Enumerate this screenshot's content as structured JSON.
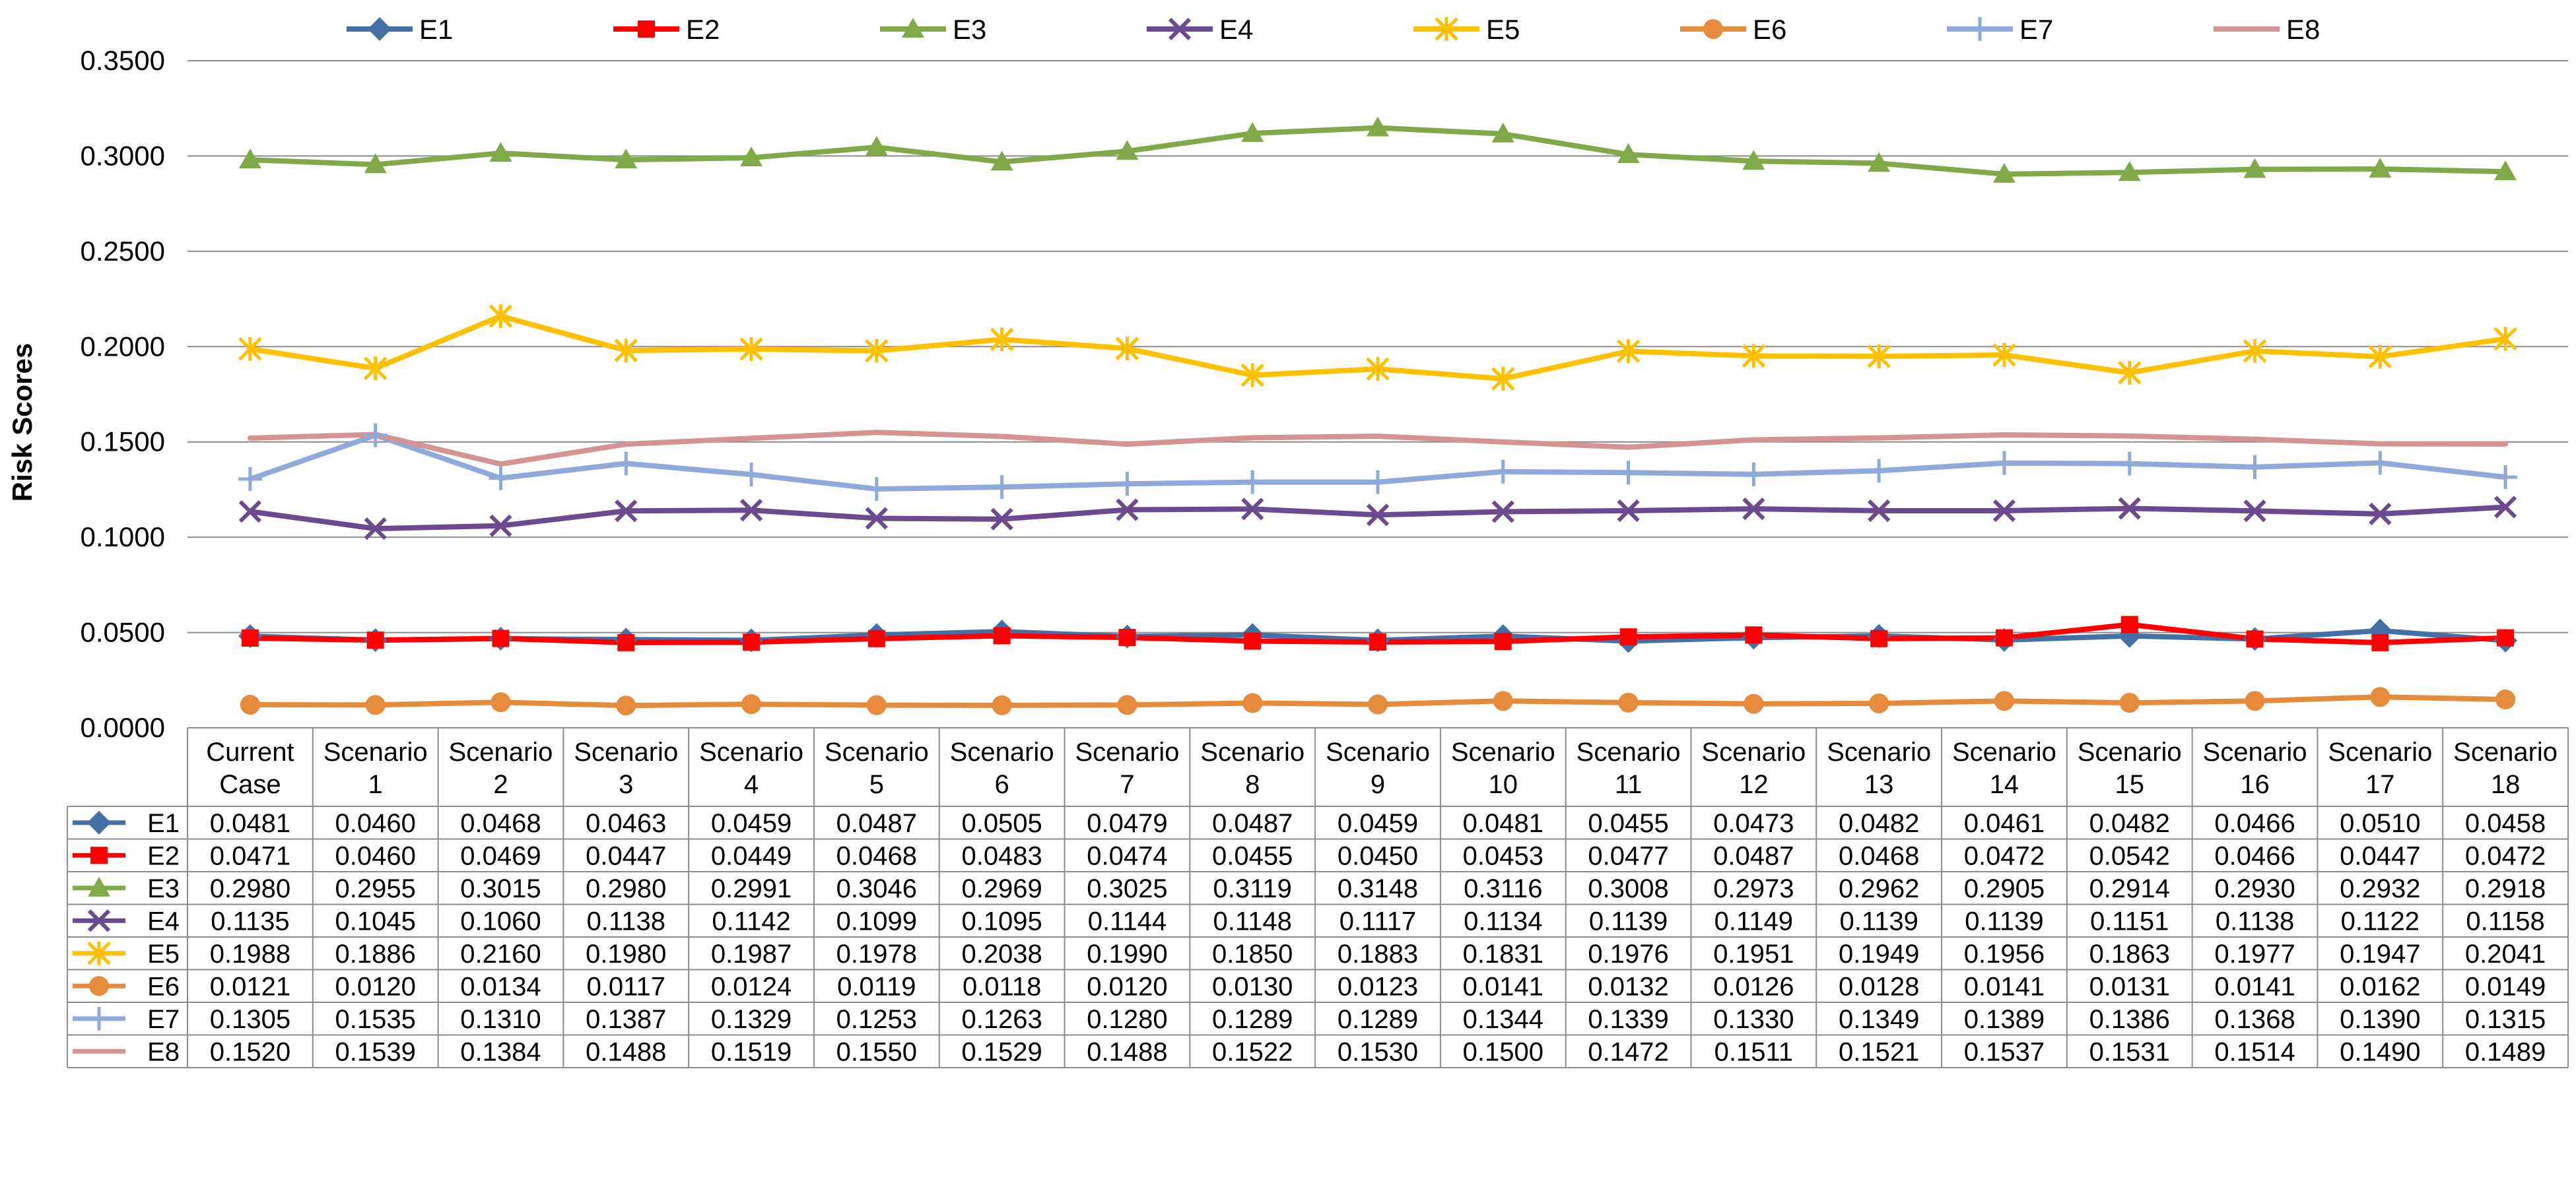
{
  "chart_data": {
    "type": "line",
    "title": "",
    "xlabel": "",
    "ylabel": "Risk Scores",
    "ylim": [
      0,
      0.35
    ],
    "ytick_step": 0.05,
    "ytick_labels": [
      "0.0000",
      "0.0500",
      "0.1000",
      "0.1500",
      "0.2000",
      "0.2500",
      "0.3000",
      "0.3500"
    ],
    "grid": true,
    "legend_position": "top",
    "categories": [
      {
        "line1": "Current",
        "line2": "Case"
      },
      {
        "line1": "Scenario",
        "line2": "1"
      },
      {
        "line1": "Scenario",
        "line2": "2"
      },
      {
        "line1": "Scenario",
        "line2": "3"
      },
      {
        "line1": "Scenario",
        "line2": "4"
      },
      {
        "line1": "Scenario",
        "line2": "5"
      },
      {
        "line1": "Scenario",
        "line2": "6"
      },
      {
        "line1": "Scenario",
        "line2": "7"
      },
      {
        "line1": "Scenario",
        "line2": "8"
      },
      {
        "line1": "Scenario",
        "line2": "9"
      },
      {
        "line1": "Scenario",
        "line2": "10"
      },
      {
        "line1": "Scenario",
        "line2": "11"
      },
      {
        "line1": "Scenario",
        "line2": "12"
      },
      {
        "line1": "Scenario",
        "line2": "13"
      },
      {
        "line1": "Scenario",
        "line2": "14"
      },
      {
        "line1": "Scenario",
        "line2": "15"
      },
      {
        "line1": "Scenario",
        "line2": "16"
      },
      {
        "line1": "Scenario",
        "line2": "17"
      },
      {
        "line1": "Scenario",
        "line2": "18"
      }
    ],
    "series": [
      {
        "name": "E1",
        "color": "#4470a8",
        "marker": "diamond",
        "values": [
          "0.0481",
          "0.0460",
          "0.0468",
          "0.0463",
          "0.0459",
          "0.0487",
          "0.0505",
          "0.0479",
          "0.0487",
          "0.0459",
          "0.0481",
          "0.0455",
          "0.0473",
          "0.0482",
          "0.0461",
          "0.0482",
          "0.0466",
          "0.0510",
          "0.0458"
        ]
      },
      {
        "name": "E2",
        "color": "#ff0000",
        "marker": "square",
        "values": [
          "0.0471",
          "0.0460",
          "0.0469",
          "0.0447",
          "0.0449",
          "0.0468",
          "0.0483",
          "0.0474",
          "0.0455",
          "0.0450",
          "0.0453",
          "0.0477",
          "0.0487",
          "0.0468",
          "0.0472",
          "0.0542",
          "0.0466",
          "0.0447",
          "0.0472"
        ]
      },
      {
        "name": "E3",
        "color": "#7faa47",
        "marker": "triangle",
        "values": [
          "0.2980",
          "0.2955",
          "0.3015",
          "0.2980",
          "0.2991",
          "0.3046",
          "0.2969",
          "0.3025",
          "0.3119",
          "0.3148",
          "0.3116",
          "0.3008",
          "0.2973",
          "0.2962",
          "0.2905",
          "0.2914",
          "0.2930",
          "0.2932",
          "0.2918"
        ]
      },
      {
        "name": "E4",
        "color": "#6b4a8e",
        "marker": "x",
        "values": [
          "0.1135",
          "0.1045",
          "0.1060",
          "0.1138",
          "0.1142",
          "0.1099",
          "0.1095",
          "0.1144",
          "0.1148",
          "0.1117",
          "0.1134",
          "0.1139",
          "0.1149",
          "0.1139",
          "0.1139",
          "0.1151",
          "0.1138",
          "0.1122",
          "0.1158"
        ]
      },
      {
        "name": "E5",
        "color": "#ffc000",
        "marker": "star",
        "values": [
          "0.1988",
          "0.1886",
          "0.2160",
          "0.1980",
          "0.1987",
          "0.1978",
          "0.2038",
          "0.1990",
          "0.1850",
          "0.1883",
          "0.1831",
          "0.1976",
          "0.1951",
          "0.1949",
          "0.1956",
          "0.1863",
          "0.1977",
          "0.1947",
          "0.2041"
        ]
      },
      {
        "name": "E6",
        "color": "#e68a3c",
        "marker": "circle",
        "values": [
          "0.0121",
          "0.0120",
          "0.0134",
          "0.0117",
          "0.0124",
          "0.0119",
          "0.0118",
          "0.0120",
          "0.0130",
          "0.0123",
          "0.0141",
          "0.0132",
          "0.0126",
          "0.0128",
          "0.0141",
          "0.0131",
          "0.0141",
          "0.0162",
          "0.0149"
        ]
      },
      {
        "name": "E7",
        "color": "#8eaad8",
        "marker": "plus",
        "values": [
          "0.1305",
          "0.1535",
          "0.1310",
          "0.1387",
          "0.1329",
          "0.1253",
          "0.1263",
          "0.1280",
          "0.1289",
          "0.1289",
          "0.1344",
          "0.1339",
          "0.1330",
          "0.1349",
          "0.1389",
          "0.1386",
          "0.1368",
          "0.1390",
          "0.1315"
        ]
      },
      {
        "name": "E8",
        "color": "#d49494",
        "marker": "none",
        "values": [
          "0.1520",
          "0.1539",
          "0.1384",
          "0.1488",
          "0.1519",
          "0.1550",
          "0.1529",
          "0.1488",
          "0.1522",
          "0.1530",
          "0.1500",
          "0.1472",
          "0.1511",
          "0.1521",
          "0.1537",
          "0.1531",
          "0.1514",
          "0.1490",
          "0.1489"
        ]
      }
    ]
  }
}
